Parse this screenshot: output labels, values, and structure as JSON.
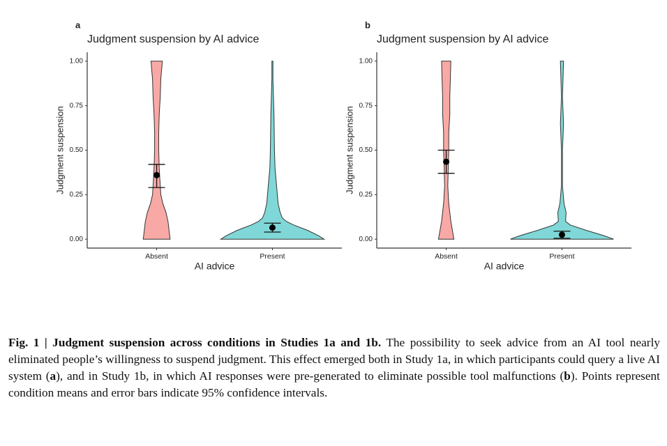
{
  "chart_data": [
    {
      "type": "violin",
      "panel_label": "a",
      "title": "Judgment suspension by AI advice",
      "x_label": "AI advice",
      "y_label": "Judgment suspension",
      "categories": [
        "Absent",
        "Present"
      ],
      "ylim": [
        -0.05,
        1.05
      ],
      "yticks": [
        {
          "value": 0,
          "label": "0.00"
        },
        {
          "value": 0.25,
          "label": "0.25"
        },
        {
          "value": 0.5,
          "label": "0.50"
        },
        {
          "value": 0.75,
          "label": "0.75"
        },
        {
          "value": 1,
          "label": "1.00"
        }
      ],
      "groups": [
        {
          "color": "#f8a9a6",
          "mean": 0.36,
          "ci": [
            0.29,
            0.42
          ],
          "density_y": [
            0,
            0.05,
            0.1,
            0.15,
            0.2,
            0.25,
            0.3,
            0.4,
            0.5,
            0.6,
            0.7,
            0.8,
            0.9,
            1.0
          ],
          "density_w": [
            0.26,
            0.24,
            0.22,
            0.18,
            0.12,
            0.08,
            0.07,
            0.05,
            0.04,
            0.04,
            0.05,
            0.07,
            0.08,
            0.11
          ]
        },
        {
          "color": "#80d7d7",
          "mean": 0.065,
          "ci": [
            0.04,
            0.09
          ],
          "density_y": [
            0,
            0.02,
            0.05,
            0.08,
            0.1,
            0.12,
            0.15,
            0.2,
            0.3,
            0.4,
            0.5,
            0.7,
            0.9,
            1.0
          ],
          "density_w": [
            1,
            0.89,
            0.68,
            0.41,
            0.27,
            0.19,
            0.15,
            0.11,
            0.08,
            0.05,
            0.04,
            0.03,
            0.01,
            0.01
          ]
        }
      ]
    },
    {
      "type": "violin",
      "panel_label": "b",
      "title": "Judgment suspension by AI advice",
      "x_label": "AI advice",
      "y_label": "Judgment suspension",
      "categories": [
        "Absent",
        "Present"
      ],
      "ylim": [
        -0.05,
        1.05
      ],
      "yticks": [
        {
          "value": 0,
          "label": "0.00"
        },
        {
          "value": 0.25,
          "label": "0.25"
        },
        {
          "value": 0.5,
          "label": "0.50"
        },
        {
          "value": 0.75,
          "label": "0.75"
        },
        {
          "value": 1,
          "label": "1.00"
        }
      ],
      "groups": [
        {
          "color": "#f8a9a6",
          "mean": 0.435,
          "ci": [
            0.37,
            0.5
          ],
          "density_y": [
            0,
            0.05,
            0.1,
            0.2,
            0.3,
            0.4,
            0.5,
            0.6,
            0.7,
            0.8,
            0.9,
            1.0
          ],
          "density_w": [
            0.15,
            0.12,
            0.09,
            0.05,
            0.03,
            0.04,
            0.05,
            0.05,
            0.07,
            0.07,
            0.08,
            0.09
          ]
        },
        {
          "color": "#80d7d7",
          "mean": 0.025,
          "ci": [
            0.005,
            0.045
          ],
          "density_y": [
            0,
            0.02,
            0.05,
            0.08,
            0.1,
            0.15,
            0.2,
            0.3,
            0.5,
            0.65,
            0.8,
            1.0
          ],
          "density_w": [
            1,
            0.81,
            0.47,
            0.16,
            0.07,
            0.08,
            0.04,
            0.01,
            0.01,
            0.03,
            0.01,
            0.03
          ]
        }
      ]
    }
  ],
  "caption": [
    {
      "text": "Fig. 1 | Judgment suspension across conditions in Studies 1a and 1b.",
      "bold": true
    },
    {
      "text": " The possibility to seek advice from an AI tool nearly eliminated people’s willingness to suspend judgment. This effect emerged both in Study 1a, in which participants could query a live AI system (",
      "bold": false
    },
    {
      "text": "a",
      "bold": true
    },
    {
      "text": "), and in Study 1b, in which AI responses were pre-generated to eliminate possible tool malfunctions (",
      "bold": false
    },
    {
      "text": "b",
      "bold": true
    },
    {
      "text": "). Points represent condition means and error bars indicate 95% confidence intervals.",
      "bold": false
    }
  ]
}
